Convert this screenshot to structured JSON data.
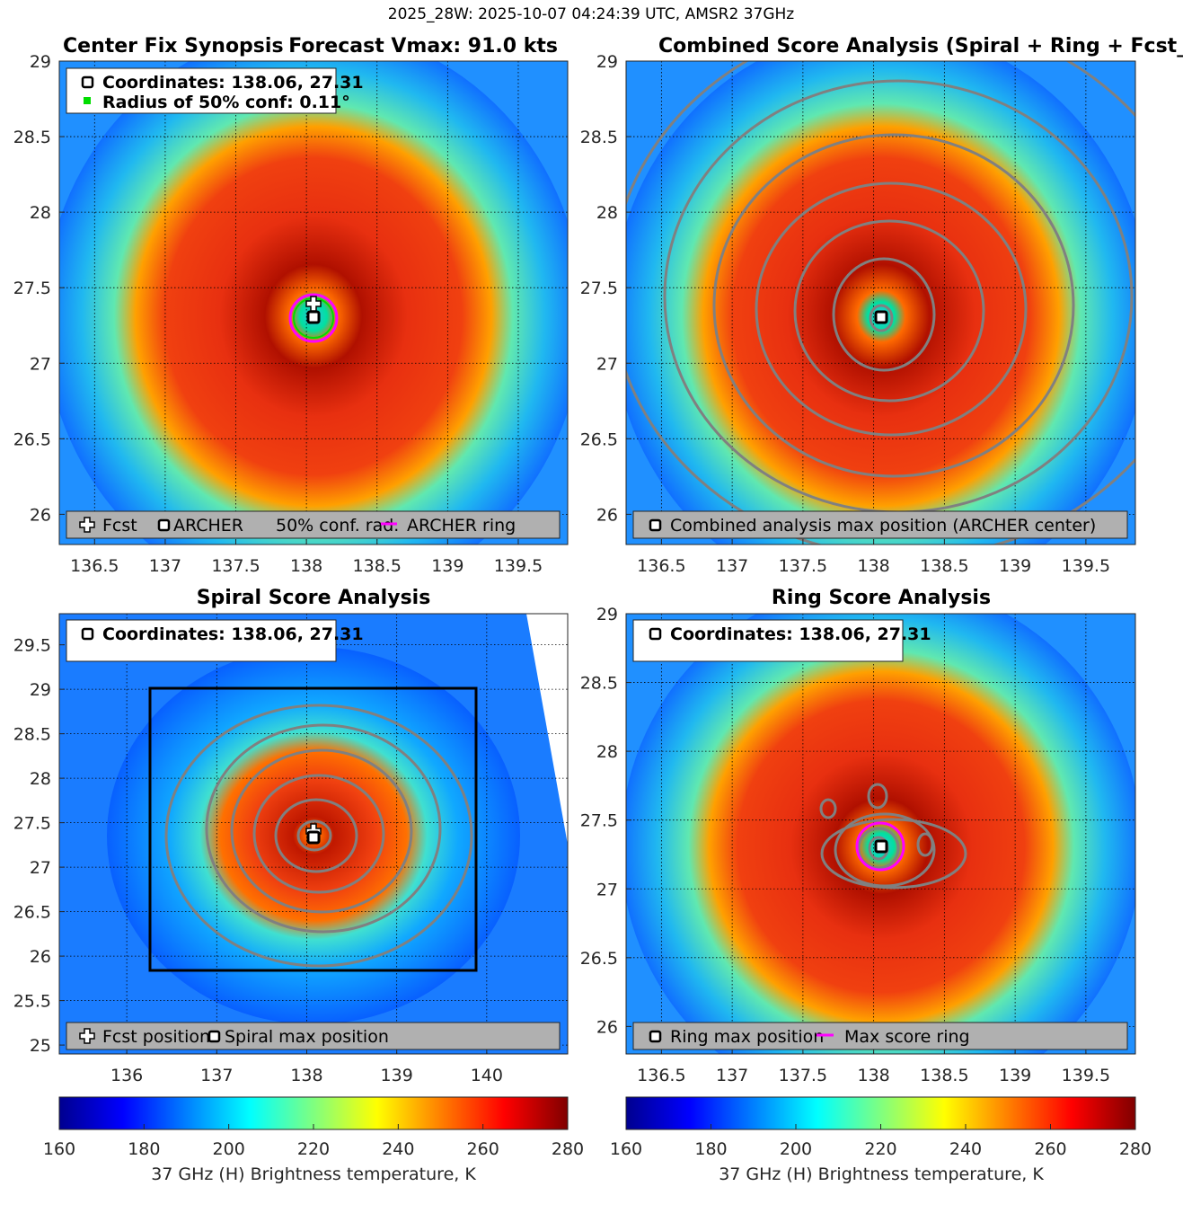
{
  "suptitle": "2025_28W: 2025-10-07 04:24:39 UTC, AMSR2 37GHz",
  "panels": {
    "synopsis": {
      "title_left": "Center Fix Synopsis",
      "title_right": "Forecast Vmax: 91.0 kts",
      "info_coords": "Coordinates: 138.06, 27.31",
      "info_radius": "Radius of 50% conf: 0.11°",
      "legend": {
        "fcst": "Fcst",
        "archer": "ARCHER",
        "conf": "50% conf. rad.",
        "ring": "ARCHER ring"
      }
    },
    "combined": {
      "title": "Combined Score Analysis (Spiral + Ring + Fcst_Pe",
      "legend": "Combined analysis max position (ARCHER center)"
    },
    "spiral": {
      "title": "Spiral Score Analysis",
      "info_coords": "Coordinates: 138.06, 27.31",
      "legend": {
        "fcst": "Fcst position",
        "max": "Spiral max position"
      }
    },
    "ring": {
      "title": "Ring Score Analysis",
      "info_coords": "Coordinates: 138.06, 27.31",
      "legend": {
        "max": "Ring max position",
        "ring": "Max score ring"
      }
    }
  },
  "colorbar": {
    "label": "37 GHz (H) Brightness temperature, K",
    "ticks": [
      "160",
      "180",
      "200",
      "220",
      "240",
      "260",
      "280"
    ]
  },
  "colors": {
    "ring": "#ff00ff",
    "confidence": "#00dd00",
    "contour": "#808080"
  },
  "chart_data": [
    {
      "type": "heatmap",
      "name": "synopsis",
      "x_range": [
        136.25,
        139.85
      ],
      "y_range": [
        25.8,
        29.0
      ],
      "xticks": [
        "136.5",
        "137",
        "137.5",
        "138",
        "138.5",
        "139",
        "139.5"
      ],
      "yticks": [
        "26",
        "26.5",
        "27",
        "27.5",
        "28",
        "28.5",
        "29"
      ],
      "center": [
        138.06,
        27.31
      ],
      "forecast": [
        138.06,
        27.4
      ],
      "conf_radius_deg": 0.11,
      "clim": [
        160,
        280
      ]
    },
    {
      "type": "heatmap",
      "name": "combined",
      "x_range": [
        136.25,
        139.85
      ],
      "y_range": [
        25.8,
        29.0
      ],
      "xticks": [
        "136.5",
        "137",
        "137.5",
        "138",
        "138.5",
        "139",
        "139.5"
      ],
      "yticks": [
        "26",
        "26.5",
        "27",
        "27.5",
        "28",
        "28.5",
        "29"
      ],
      "center": [
        138.06,
        27.31
      ],
      "clim": [
        160,
        280
      ]
    },
    {
      "type": "heatmap",
      "name": "spiral",
      "x_range": [
        135.25,
        140.9
      ],
      "y_range": [
        24.9,
        29.85
      ],
      "xticks": [
        "136",
        "137",
        "138",
        "139",
        "140"
      ],
      "yticks": [
        "25",
        "25.5",
        "26",
        "26.5",
        "27",
        "27.5",
        "28",
        "28.5",
        "29",
        "29.5"
      ],
      "center": [
        138.06,
        27.31
      ],
      "forecast": [
        138.06,
        27.4
      ],
      "search_box": {
        "x": [
          136.25,
          139.85
        ],
        "y": [
          25.8,
          29.0
        ]
      },
      "clim": [
        160,
        280
      ]
    },
    {
      "type": "heatmap",
      "name": "ring",
      "x_range": [
        136.25,
        139.85
      ],
      "y_range": [
        25.8,
        29.0
      ],
      "xticks": [
        "136.5",
        "137",
        "137.5",
        "138",
        "138.5",
        "139",
        "139.5"
      ],
      "yticks": [
        "26",
        "26.5",
        "27",
        "27.5",
        "28",
        "28.5",
        "29"
      ],
      "center": [
        138.06,
        27.31
      ],
      "clim": [
        160,
        280
      ]
    }
  ]
}
